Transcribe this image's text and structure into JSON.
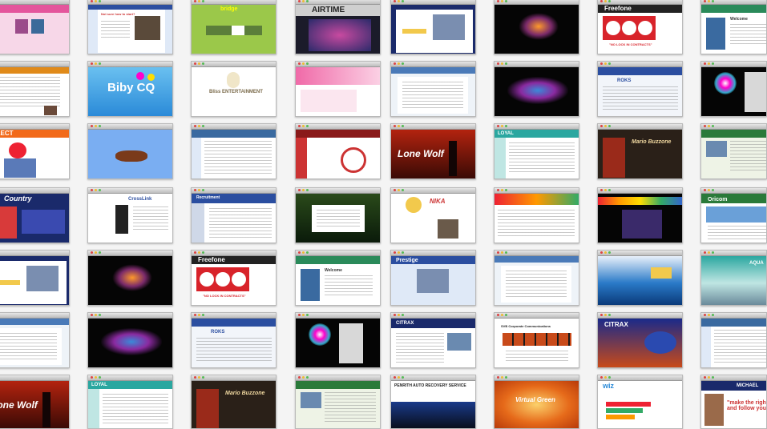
{
  "wall": {
    "columns": 8,
    "rows": 7,
    "tiles": [
      {
        "theme": "pink",
        "label": ""
      },
      {
        "theme": "bluecard",
        "label": "Not sure how to start?"
      },
      {
        "theme": "green",
        "label": "bridge"
      },
      {
        "theme": "airtime",
        "label": "AIRTIME"
      },
      {
        "theme": "navyoffice",
        "label": ""
      },
      {
        "theme": "dark",
        "label": ""
      },
      {
        "theme": "freefone",
        "label": "Freefone"
      },
      {
        "theme": "bluewhite",
        "label": "Welcome"
      },
      {
        "theme": "orangedoc",
        "label": ""
      },
      {
        "theme": "bibycq",
        "label": "Biby CQ"
      },
      {
        "theme": "bliss",
        "label": "Bliss ENTERTAINMENT"
      },
      {
        "theme": "pinkbrush",
        "label": ""
      },
      {
        "theme": "lightdoc",
        "label": ""
      },
      {
        "theme": "darkstage",
        "label": ""
      },
      {
        "theme": "roks",
        "label": "ROKS"
      },
      {
        "theme": "blackflower",
        "label": ""
      },
      {
        "theme": "select",
        "label": "SELECT"
      },
      {
        "theme": "skyblue",
        "label": ""
      },
      {
        "theme": "lightsite",
        "label": ""
      },
      {
        "theme": "redcurve",
        "label": ""
      },
      {
        "theme": "lonewolf",
        "label": "Lone Wolf"
      },
      {
        "theme": "tealsite",
        "label": "LOYAL"
      },
      {
        "theme": "mariodark",
        "label": "Mario Buzzone"
      },
      {
        "theme": "greenoffice",
        "label": ""
      },
      {
        "theme": "country",
        "label": "Country"
      },
      {
        "theme": "crosslink",
        "label": "CrossLink"
      },
      {
        "theme": "recruit",
        "label": "Recruitment"
      },
      {
        "theme": "forest",
        "label": ""
      },
      {
        "theme": "nika",
        "label": "NIKA"
      },
      {
        "theme": "colorful",
        "label": ""
      },
      {
        "theme": "rainbow",
        "label": ""
      },
      {
        "theme": "oricom",
        "label": "Oricom"
      },
      {
        "theme": "navyoffice",
        "label": ""
      },
      {
        "theme": "dark",
        "label": ""
      },
      {
        "theme": "freefone",
        "label": "Freefone"
      },
      {
        "theme": "bluewhite",
        "label": "Welcome"
      },
      {
        "theme": "prestige",
        "label": "Prestige"
      },
      {
        "theme": "lightdoc",
        "label": ""
      },
      {
        "theme": "ocean",
        "label": ""
      },
      {
        "theme": "mountain",
        "label": "AQUA"
      },
      {
        "theme": "lightdoc",
        "label": ""
      },
      {
        "theme": "darkstage",
        "label": ""
      },
      {
        "theme": "roks",
        "label": "ROKS"
      },
      {
        "theme": "blackflower",
        "label": ""
      },
      {
        "theme": "citrax",
        "label": "CITRAX"
      },
      {
        "theme": "filmstrip",
        "label": "SVB Corporate Communications"
      },
      {
        "theme": "citrax2",
        "label": "CITRAX"
      },
      {
        "theme": "lightsite",
        "label": ""
      },
      {
        "theme": "lonewolf",
        "label": "Lone Wolf"
      },
      {
        "theme": "tealsite",
        "label": "LOYAL"
      },
      {
        "theme": "mariodark",
        "label": "Mario Buzzone"
      },
      {
        "theme": "greenoffice",
        "label": ""
      },
      {
        "theme": "penrith",
        "label": "PENRITH AUTO RECOVERY SERVICE"
      },
      {
        "theme": "virtual",
        "label": "Virtual Green"
      },
      {
        "theme": "wiz",
        "label": "wiz"
      },
      {
        "theme": "michael",
        "label": "MICHAEL"
      }
    ]
  },
  "texts": {
    "freefone_tag": "\"NO LOCK IN CONTRACTS\"",
    "michael_quote": "\"make the right choi and follow your h",
    "lonewolf_credit": ""
  },
  "colors": {
    "freefone_red": "#d8232a",
    "navy": "#1a2a6b",
    "teal": "#2aa7a0"
  }
}
